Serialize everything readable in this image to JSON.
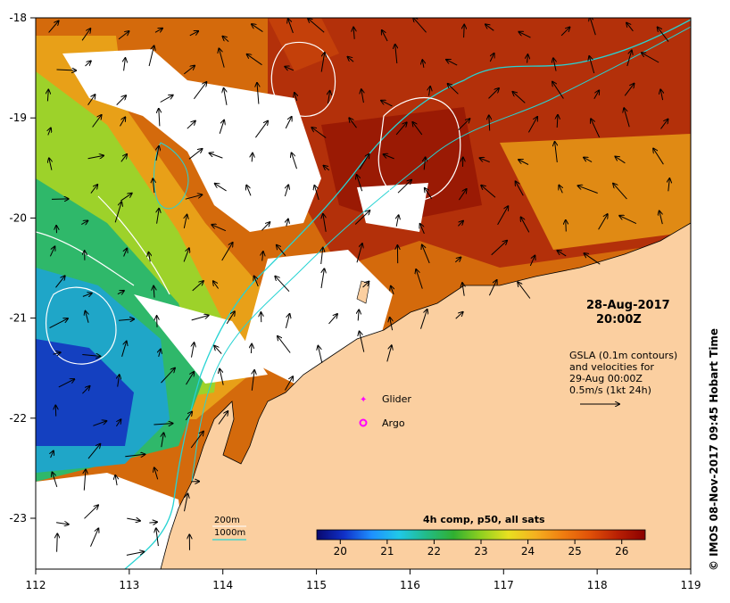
{
  "map": {
    "lon_ticks": [
      "112",
      "113",
      "114",
      "115",
      "116",
      "117",
      "118",
      "119"
    ],
    "lat_ticks": [
      "-18",
      "-19",
      "-20",
      "-21",
      "-22",
      "-23"
    ],
    "date_line1": "28-Aug-2017",
    "date_line2": "20:00Z",
    "gsla_lines": [
      "GSLA (0.1m contours)",
      "and velocities for",
      "29-Aug 00:00Z",
      "0.5m/s (1kt 24h)"
    ],
    "legend": {
      "glider_label": "Glider",
      "argo_label": "Argo",
      "depth_200": "200m",
      "depth_1000": "1000m"
    },
    "colorbar": {
      "title": "4h comp, p50, all sats",
      "ticks": [
        "20",
        "21",
        "22",
        "23",
        "24",
        "25",
        "26"
      ],
      "stops": [
        "#08086e",
        "#1030c8",
        "#1e90ff",
        "#20c8e8",
        "#22bb88",
        "#30b030",
        "#90d020",
        "#e8e020",
        "#f5b020",
        "#f07d10",
        "#e05008",
        "#b81f04",
        "#8b0000"
      ]
    },
    "credit": "© IMOS 08-Nov-2017 09:45 Hobart Time",
    "colors": {
      "land": "#fbcfa0",
      "contour_1000": "#27d3d3",
      "glider": "#ff00ff",
      "argo": "#ff00ff"
    }
  }
}
